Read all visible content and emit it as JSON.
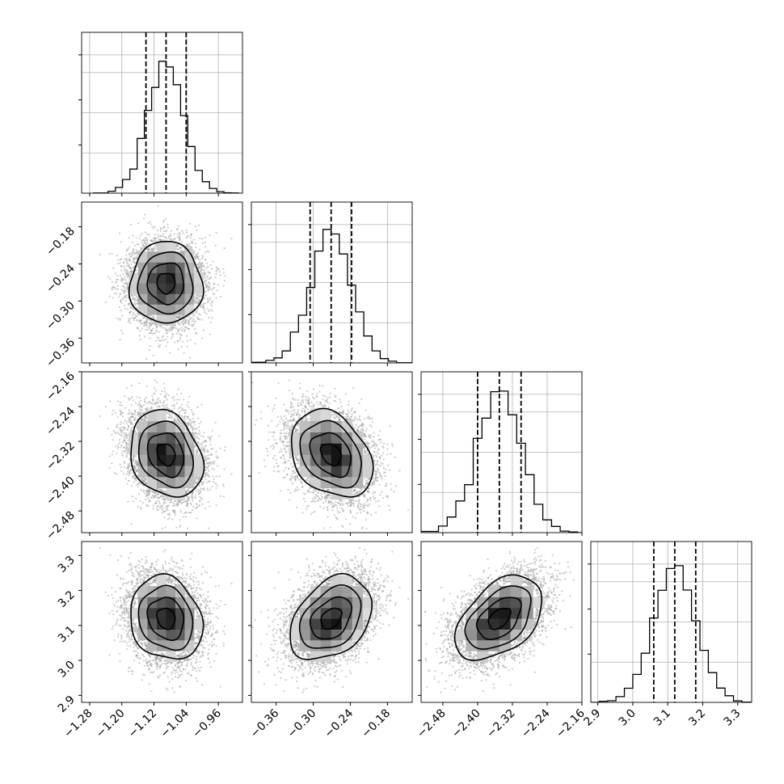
{
  "chart_data": {
    "type": "corner",
    "parameters": [
      {
        "mean": -1.09,
        "sd": 0.045,
        "q16": -1.14,
        "q50": -1.09,
        "q84": -1.04,
        "range": [
          -1.3,
          -0.9
        ],
        "ticks": [
          -1.28,
          -1.2,
          -1.12,
          -1.04,
          -0.96
        ],
        "tick_labels": [
          "−1.28",
          "−1.20",
          "−1.12",
          "−1.04",
          "−0.96"
        ],
        "hist_peak": 0.82
      },
      {
        "mean": -0.271,
        "sd": 0.033,
        "q16": -0.305,
        "q50": -0.271,
        "q84": -0.238,
        "range": [
          -0.4,
          -0.14
        ],
        "ticks": [
          -0.36,
          -0.3,
          -0.24,
          -0.18
        ],
        "tick_labels": [
          "−0.36",
          "−0.30",
          "−0.24",
          "−0.18"
        ],
        "hist_peak": 0.83
      },
      {
        "mean": -2.35,
        "sd": 0.05,
        "q16": -2.4,
        "q50": -2.35,
        "q84": -2.3,
        "range": [
          -2.53,
          -2.16
        ],
        "ticks": [
          -2.48,
          -2.4,
          -2.32,
          -2.24,
          -2.16
        ],
        "tick_labels": [
          "−2.48",
          "−2.40",
          "−2.32",
          "−2.24",
          "−2.16"
        ],
        "hist_peak": 0.88
      },
      {
        "mean": 3.12,
        "sd": 0.06,
        "q16": 3.06,
        "q50": 3.12,
        "q84": 3.18,
        "range": [
          2.88,
          3.34
        ],
        "ticks": [
          2.9,
          3.0,
          3.1,
          3.2,
          3.3
        ],
        "tick_labels": [
          "2.9",
          "3.0",
          "3.1",
          "3.2",
          "3.3"
        ],
        "hist_peak": 0.85
      }
    ],
    "correlations": [
      [
        1.0,
        0.0,
        -0.22,
        -0.15
      ],
      [
        0.0,
        1.0,
        -0.3,
        0.35
      ],
      [
        -0.22,
        -0.3,
        1.0,
        0.45
      ],
      [
        -0.15,
        0.35,
        0.45,
        1.0
      ]
    ],
    "grid": true,
    "quantile_lines": "dashed"
  },
  "colors": {
    "axes": "#000000",
    "grid": "#b0b0b0",
    "points": "#a0a0a0",
    "hist_dark": "#000000",
    "hist_light": "#ffffff"
  }
}
